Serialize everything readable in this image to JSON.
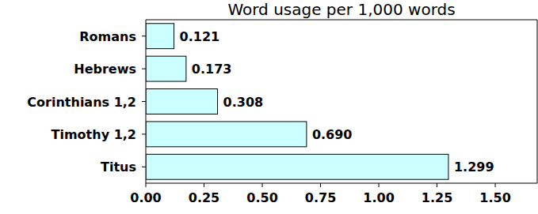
{
  "chart_data": {
    "type": "bar",
    "title": "Word usage per 1,000 words",
    "orientation": "horizontal",
    "categories": [
      "Romans",
      "Hebrews",
      "Corinthians 1,2",
      "Timothy 1,2",
      "Titus"
    ],
    "values": [
      0.121,
      0.173,
      0.308,
      0.69,
      1.299
    ],
    "value_labels": [
      "0.121",
      "0.173",
      "0.308",
      "0.690",
      "1.299"
    ],
    "data_labels": true,
    "color": "#ccffff",
    "xlim": [
      0,
      1.68
    ],
    "xticks": [
      {
        "value": 0,
        "label": "0.00"
      },
      0.25,
      {
        "value": 0.5,
        "label": "0.50"
      },
      0.75,
      {
        "value": 1,
        "label": "1.00"
      },
      1.25,
      {
        "value": 1.5,
        "label": "1.50"
      }
    ],
    "grid": false
  }
}
